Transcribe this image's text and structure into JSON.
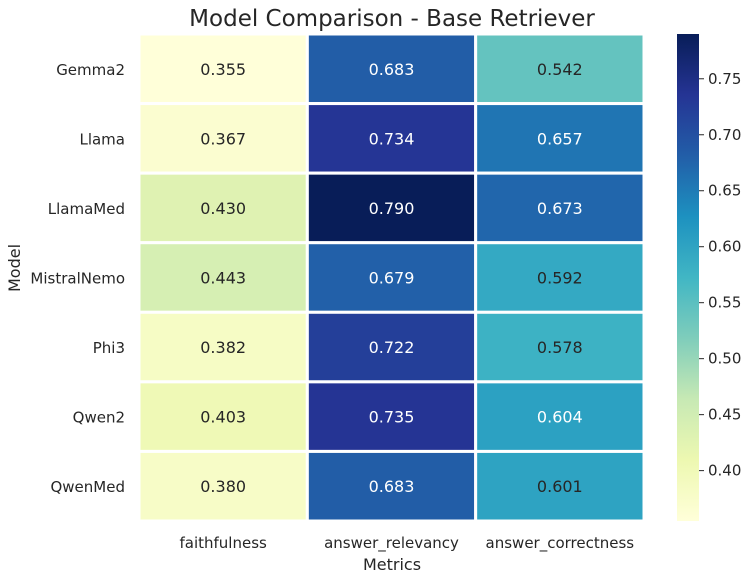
{
  "chart_data": {
    "type": "heatmap",
    "title": "Model Comparison - Base Retriever",
    "xlabel": "Metrics",
    "ylabel": "Model",
    "columns": [
      "faithfulness",
      "answer_relevancy",
      "answer_correctness"
    ],
    "rows": [
      "Gemma2",
      "Llama",
      "LlamaMed",
      "MistralNemo",
      "Phi3",
      "Qwen2",
      "QwenMed"
    ],
    "values": [
      [
        0.355,
        0.683,
        0.542
      ],
      [
        0.367,
        0.734,
        0.657
      ],
      [
        0.43,
        0.79,
        0.673
      ],
      [
        0.443,
        0.679,
        0.592
      ],
      [
        0.382,
        0.722,
        0.578
      ],
      [
        0.403,
        0.735,
        0.604
      ],
      [
        0.38,
        0.683,
        0.601
      ]
    ],
    "cell_labels": [
      [
        "0.355",
        "0.683",
        "0.542"
      ],
      [
        "0.367",
        "0.734",
        "0.657"
      ],
      [
        "0.430",
        "0.790",
        "0.673"
      ],
      [
        "0.443",
        "0.679",
        "0.592"
      ],
      [
        "0.382",
        "0.722",
        "0.578"
      ],
      [
        "0.403",
        "0.735",
        "0.604"
      ],
      [
        "0.380",
        "0.683",
        "0.601"
      ]
    ],
    "colormap": "YlGnBu",
    "vmin": 0.355,
    "vmax": 0.79,
    "colorbar_ticks": [
      0.4,
      0.45,
      0.5,
      0.55,
      0.6,
      0.65,
      0.7,
      0.75
    ],
    "colorbar_tick_labels": [
      "0.40",
      "0.45",
      "0.50",
      "0.55",
      "0.60",
      "0.65",
      "0.70",
      "0.75"
    ],
    "legend": "colorbar-right",
    "grid": false
  }
}
